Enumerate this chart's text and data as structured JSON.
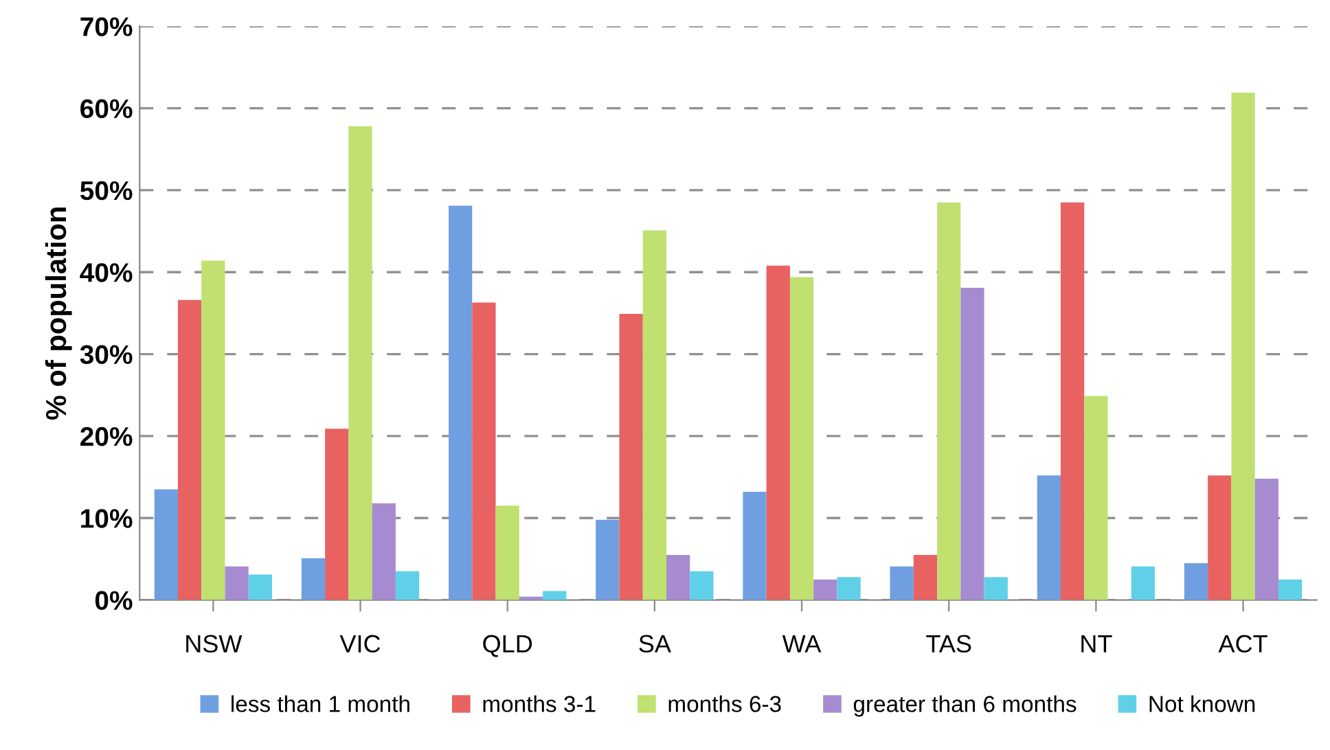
{
  "chart_data": {
    "type": "bar",
    "ylabel": "% of population",
    "categories": [
      "NSW",
      "VIC",
      "QLD",
      "SA",
      "WA",
      "TAS",
      "NT",
      "ACT"
    ],
    "series": [
      {
        "name": "less than 1 month",
        "color": "#6f9fe0",
        "values": [
          13.5,
          5.1,
          48.1,
          9.8,
          13.2,
          4.1,
          15.2,
          4.5
        ]
      },
      {
        "name": "months 3-1",
        "color": "#e86262",
        "values": [
          36.6,
          20.9,
          36.3,
          34.9,
          40.8,
          5.5,
          48.5,
          15.2
        ]
      },
      {
        "name": "months 6-3",
        "color": "#c0e070",
        "values": [
          41.4,
          57.8,
          11.5,
          45.1,
          39.4,
          48.5,
          24.9,
          61.9
        ]
      },
      {
        "name": "greater than 6 months",
        "color": "#a68bd0",
        "values": [
          4.1,
          11.8,
          0.4,
          5.5,
          2.5,
          38.1,
          0,
          14.8
        ]
      },
      {
        "name": "Not known",
        "color": "#60d0e8",
        "values": [
          3.1,
          3.5,
          1.1,
          3.5,
          2.8,
          2.8,
          4.1,
          2.5
        ]
      }
    ],
    "ylim": [
      0,
      70
    ],
    "yticks": [
      {
        "value": 0,
        "label": "0%"
      },
      {
        "value": 10,
        "label": "10%"
      },
      {
        "value": 20,
        "label": "20%"
      },
      {
        "value": 30,
        "label": "30%"
      },
      {
        "value": 40,
        "label": "40%"
      },
      {
        "value": 50,
        "label": "50%"
      },
      {
        "value": 60,
        "label": "60%"
      },
      {
        "value": 70,
        "label": "70%"
      }
    ],
    "grid": "y",
    "legend": "bottom"
  }
}
